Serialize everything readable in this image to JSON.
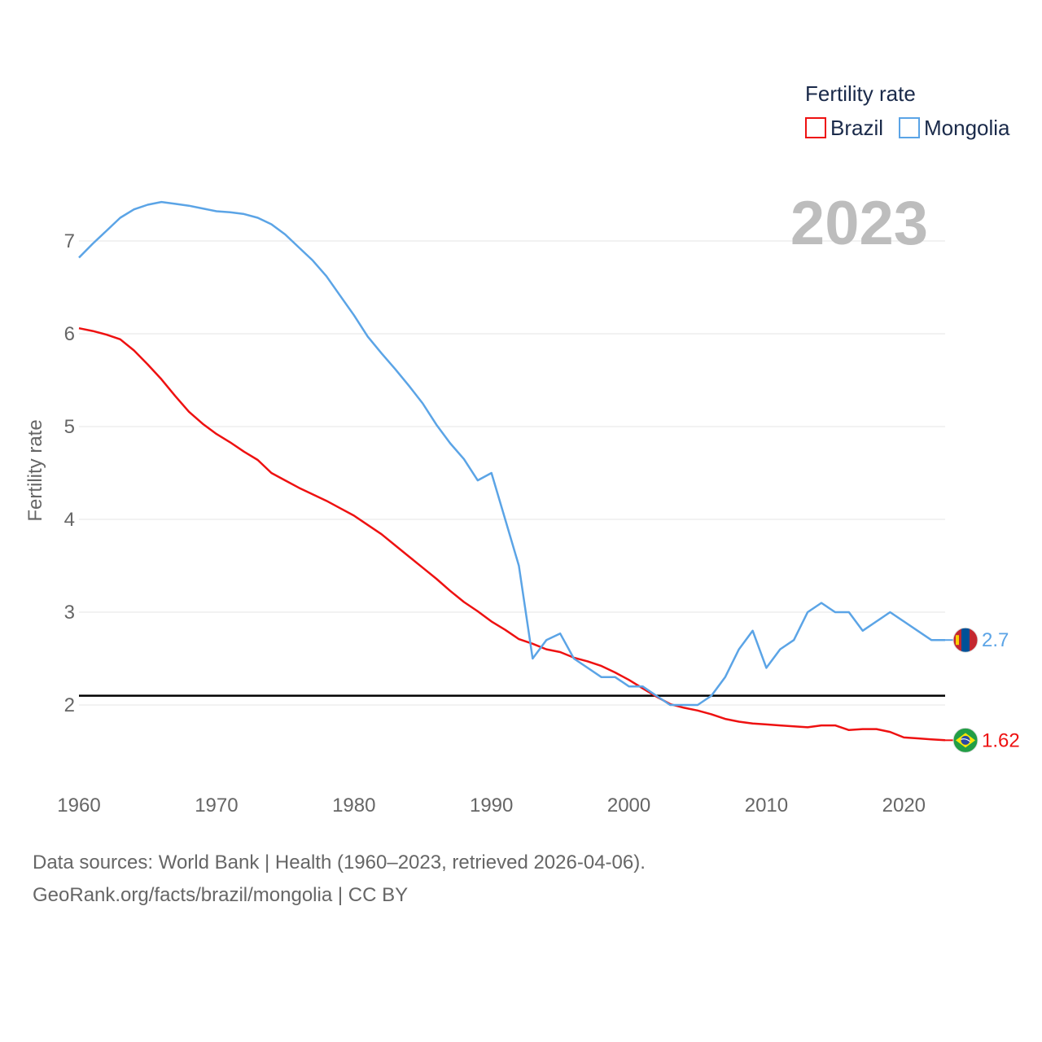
{
  "chart_data": {
    "type": "line",
    "ylabel": "Fertility rate",
    "xlabel": "",
    "year_label": "2023",
    "legend_title": "Fertility rate",
    "legend_placement": "top-right",
    "xlim": [
      1960,
      2023
    ],
    "ylim": [
      1.1,
      7.6
    ],
    "x_ticks": [
      1960,
      1970,
      1980,
      1990,
      2000,
      2010,
      2020
    ],
    "y_ticks": [
      2,
      3,
      4,
      5,
      6,
      7
    ],
    "reference_line": {
      "value": 2.1,
      "color": "#000000"
    },
    "x": [
      1960,
      1961,
      1962,
      1963,
      1964,
      1965,
      1966,
      1967,
      1968,
      1969,
      1970,
      1971,
      1972,
      1973,
      1974,
      1975,
      1976,
      1977,
      1978,
      1979,
      1980,
      1981,
      1982,
      1983,
      1984,
      1985,
      1986,
      1987,
      1988,
      1989,
      1990,
      1991,
      1992,
      1993,
      1994,
      1995,
      1996,
      1997,
      1998,
      1999,
      2000,
      2001,
      2002,
      2003,
      2004,
      2005,
      2006,
      2007,
      2008,
      2009,
      2010,
      2011,
      2012,
      2013,
      2014,
      2015,
      2016,
      2017,
      2018,
      2019,
      2020,
      2021,
      2022,
      2023
    ],
    "series": [
      {
        "name": "Brazil",
        "color": "#ee1111",
        "end_label": "1.62",
        "flag": "brazil-flag",
        "values": [
          6.06,
          6.03,
          5.99,
          5.94,
          5.82,
          5.67,
          5.51,
          5.33,
          5.16,
          5.03,
          4.92,
          4.83,
          4.73,
          4.64,
          4.5,
          4.42,
          4.34,
          4.27,
          4.2,
          4.12,
          4.04,
          3.94,
          3.84,
          3.72,
          3.6,
          3.48,
          3.36,
          3.23,
          3.11,
          3.01,
          2.9,
          2.81,
          2.71,
          2.66,
          2.6,
          2.57,
          2.51,
          2.47,
          2.42,
          2.35,
          2.27,
          2.18,
          2.09,
          2.01,
          1.97,
          1.94,
          1.9,
          1.85,
          1.82,
          1.8,
          1.79,
          1.78,
          1.77,
          1.76,
          1.78,
          1.78,
          1.73,
          1.74,
          1.74,
          1.71,
          1.65,
          1.64,
          1.63,
          1.62
        ]
      },
      {
        "name": "Mongolia",
        "color": "#5ba4e6",
        "end_label": "2.7",
        "flag": "mongolia-flag",
        "values": [
          6.82,
          6.97,
          7.11,
          7.25,
          7.34,
          7.39,
          7.42,
          7.4,
          7.38,
          7.35,
          7.32,
          7.31,
          7.29,
          7.25,
          7.18,
          7.07,
          6.93,
          6.79,
          6.62,
          6.41,
          6.2,
          5.97,
          5.79,
          5.62,
          5.44,
          5.25,
          5.02,
          4.82,
          4.65,
          4.42,
          4.5,
          4.0,
          3.5,
          2.5,
          2.7,
          2.77,
          2.5,
          2.4,
          2.3,
          2.3,
          2.2,
          2.2,
          2.1,
          2.0,
          2.0,
          2.0,
          2.1,
          2.3,
          2.6,
          2.8,
          2.4,
          2.6,
          2.7,
          3.0,
          3.1,
          3.0,
          3.0,
          2.8,
          2.9,
          3.0,
          2.9,
          2.8,
          2.7,
          2.7
        ]
      }
    ]
  },
  "source": {
    "line1": "Data sources: World Bank | Health (1960–2023, retrieved 2026-04-06).",
    "line2": "GeoRank.org/facts/brazil/mongolia | CC BY"
  }
}
